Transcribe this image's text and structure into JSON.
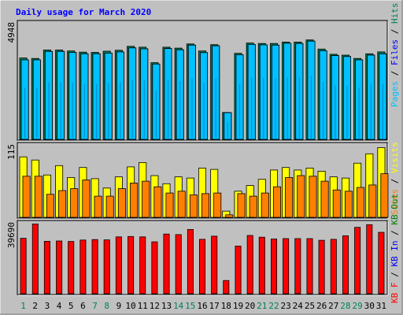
{
  "title": "Daily usage for March 2020",
  "colors": {
    "background": "#c0c0c0",
    "frame": "#000000",
    "title": "#0000ff",
    "hits": "#00805c",
    "files": "#0000ff",
    "pages": "#00c0ff",
    "visits": "#ffff00",
    "sites": "#ff8000",
    "kbin": "#0000ff",
    "kbout": "#008000",
    "kbf": "#ff0000",
    "weekday_label": "#000000",
    "weekend_label": "#00805c"
  },
  "chart_data": [
    {
      "type": "bar",
      "name": "hits-files-pages",
      "categories": [
        "1",
        "2",
        "3",
        "4",
        "5",
        "6",
        "7",
        "8",
        "9",
        "10",
        "11",
        "12",
        "13",
        "14",
        "15",
        "16",
        "17",
        "18",
        "19",
        "20",
        "21",
        "22",
        "23",
        "24",
        "25",
        "26",
        "27",
        "28",
        "29",
        "30",
        "31"
      ],
      "ymax_label": "4948",
      "ylim": [
        0,
        4948
      ],
      "series": [
        {
          "name": "Hits",
          "values": [
            3480,
            3460,
            3820,
            3820,
            3780,
            3730,
            3720,
            3770,
            3810,
            3980,
            3940,
            3280,
            3940,
            3900,
            4080,
            3780,
            4050,
            1150,
            3680,
            4120,
            4100,
            4100,
            4160,
            4160,
            4250,
            3860,
            3640,
            3600,
            3460,
            3660,
            3740
          ]
        },
        {
          "name": "Files",
          "values": [
            3400,
            3400,
            3760,
            3760,
            3720,
            3660,
            3660,
            3690,
            3740,
            3910,
            3870,
            3220,
            3880,
            3830,
            4030,
            3710,
            4000,
            1140,
            3620,
            4060,
            4040,
            4030,
            4110,
            4100,
            4200,
            3790,
            3580,
            3540,
            3400,
            3600,
            3660
          ]
        },
        {
          "name": "Pages",
          "values": [
            3400,
            3400,
            3760,
            3760,
            3720,
            3660,
            3660,
            3690,
            3740,
            3910,
            3870,
            3220,
            3880,
            3830,
            4030,
            3710,
            4000,
            1140,
            3620,
            4060,
            4040,
            4030,
            4110,
            4100,
            4200,
            3790,
            3580,
            3540,
            3400,
            3600,
            3660
          ]
        }
      ]
    },
    {
      "type": "bar",
      "name": "visits-sites",
      "categories": [
        "1",
        "2",
        "3",
        "4",
        "5",
        "6",
        "7",
        "8",
        "9",
        "10",
        "11",
        "12",
        "13",
        "14",
        "15",
        "16",
        "17",
        "18",
        "19",
        "20",
        "21",
        "22",
        "23",
        "24",
        "25",
        "26",
        "27",
        "28",
        "29",
        "30",
        "31"
      ],
      "ymax_label": "115",
      "ylim": [
        0,
        115
      ],
      "series": [
        {
          "name": "Visits",
          "values": [
            97,
            92,
            68,
            83,
            64,
            80,
            62,
            47,
            65,
            81,
            88,
            67,
            54,
            65,
            63,
            79,
            77,
            10,
            42,
            51,
            61,
            76,
            80,
            76,
            79,
            74,
            65,
            63,
            87,
            102,
            112
          ]
        },
        {
          "name": "Sites",
          "values": [
            66,
            66,
            37,
            43,
            46,
            60,
            34,
            34,
            46,
            55,
            58,
            49,
            39,
            42,
            36,
            38,
            39,
            4,
            38,
            34,
            39,
            49,
            64,
            67,
            66,
            58,
            44,
            42,
            48,
            52,
            70
          ]
        }
      ]
    },
    {
      "type": "bar",
      "name": "kbf",
      "categories": [
        "1",
        "2",
        "3",
        "4",
        "5",
        "6",
        "7",
        "8",
        "9",
        "10",
        "11",
        "12",
        "13",
        "14",
        "15",
        "16",
        "17",
        "18",
        "19",
        "20",
        "21",
        "22",
        "23",
        "24",
        "25",
        "26",
        "27",
        "28",
        "29",
        "30",
        "31"
      ],
      "ymax_label": "39690",
      "ylim": [
        0,
        39690
      ],
      "series": [
        {
          "name": "KB F",
          "values": [
            31400,
            39500,
            29700,
            29900,
            29600,
            30400,
            30700,
            30500,
            32200,
            32400,
            32200,
            29400,
            33800,
            33500,
            36400,
            30800,
            32600,
            7500,
            27000,
            33000,
            32000,
            31000,
            31200,
            31200,
            31200,
            30300,
            30800,
            32800,
            37600,
            39100,
            34800
          ]
        },
        {
          "name": "KB In",
          "values": [
            0,
            0,
            0,
            0,
            0,
            0,
            0,
            0,
            0,
            0,
            0,
            0,
            0,
            0,
            0,
            0,
            0,
            0,
            0,
            0,
            0,
            0,
            0,
            0,
            0,
            0,
            0,
            0,
            0,
            0,
            0
          ]
        },
        {
          "name": "KB Out",
          "values": [
            0,
            0,
            0,
            0,
            0,
            0,
            0,
            0,
            0,
            0,
            0,
            0,
            0,
            0,
            0,
            0,
            0,
            0,
            0,
            0,
            0,
            0,
            0,
            0,
            0,
            0,
            0,
            0,
            0,
            0,
            0
          ]
        }
      ]
    }
  ],
  "weekend_days": [
    "1",
    "7",
    "8",
    "14",
    "15",
    "21",
    "22",
    "28",
    "29"
  ]
}
